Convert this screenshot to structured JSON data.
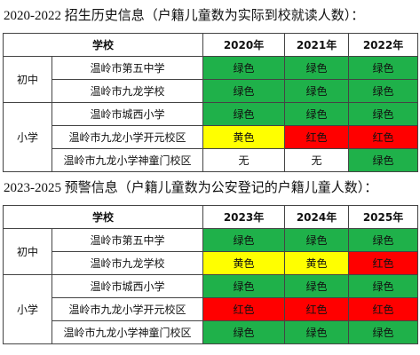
{
  "sections": [
    {
      "title": "2020-2022 招生历史信息（户籍儿童数为实际到校就读人数）：",
      "table": {
        "header": [
          "学校",
          "2020年",
          "2021年",
          "2022年"
        ],
        "groups": [
          {
            "label": "初中",
            "rows": [
              {
                "school": "温岭市第五中学",
                "cells": [
                  "绿色",
                  "绿色",
                  "绿色"
                ],
                "colors": [
                  "#1fb14a",
                  "#1fb14a",
                  "#1fb14a"
                ]
              },
              {
                "school": "温岭市九龙学校",
                "cells": [
                  "绿色",
                  "绿色",
                  "绿色"
                ],
                "colors": [
                  "#1fb14a",
                  "#1fb14a",
                  "#1fb14a"
                ]
              }
            ]
          },
          {
            "label": "小学",
            "rows": [
              {
                "school": "温岭市城西小学",
                "cells": [
                  "绿色",
                  "绿色",
                  "绿色"
                ],
                "colors": [
                  "#1fb14a",
                  "#1fb14a",
                  "#1fb14a"
                ]
              },
              {
                "school": "温岭市九龙小学开元校区",
                "cells": [
                  "黄色",
                  "红色",
                  "红色"
                ],
                "colors": [
                  "#ffff00",
                  "#ff0000",
                  "#ff0000"
                ]
              },
              {
                "school": "温岭市九龙小学神童门校区",
                "cells": [
                  "无",
                  "无",
                  "绿色"
                ],
                "colors": [
                  "#ffffff",
                  "#ffffff",
                  "#1fb14a"
                ]
              }
            ]
          }
        ]
      }
    },
    {
      "title": "2023-2025 预警信息（户籍儿童数为公安登记的户籍儿童人数）：",
      "table": {
        "header": [
          "学校",
          "2023年",
          "2024年",
          "2025年"
        ],
        "groups": [
          {
            "label": "初中",
            "rows": [
              {
                "school": "温岭市第五中学",
                "cells": [
                  "绿色",
                  "绿色",
                  "绿色"
                ],
                "colors": [
                  "#1fb14a",
                  "#1fb14a",
                  "#1fb14a"
                ]
              },
              {
                "school": "温岭市九龙学校",
                "cells": [
                  "黄色",
                  "黄色",
                  "红色"
                ],
                "colors": [
                  "#ffff00",
                  "#ffff00",
                  "#ff0000"
                ]
              }
            ]
          },
          {
            "label": "小学",
            "rows": [
              {
                "school": "温岭市城西小学",
                "cells": [
                  "绿色",
                  "绿色",
                  "绿色"
                ],
                "colors": [
                  "#1fb14a",
                  "#1fb14a",
                  "#1fb14a"
                ]
              },
              {
                "school": "温岭市九龙小学开元校区",
                "cells": [
                  "红色",
                  "红色",
                  "红色"
                ],
                "colors": [
                  "#ff0000",
                  "#ff0000",
                  "#ff0000"
                ]
              },
              {
                "school": "温岭市九龙小学神童门校区",
                "cells": [
                  "绿色",
                  "绿色",
                  "绿色"
                ],
                "colors": [
                  "#1fb14a",
                  "#1fb14a",
                  "#1fb14a"
                ]
              }
            ]
          }
        ]
      }
    }
  ]
}
